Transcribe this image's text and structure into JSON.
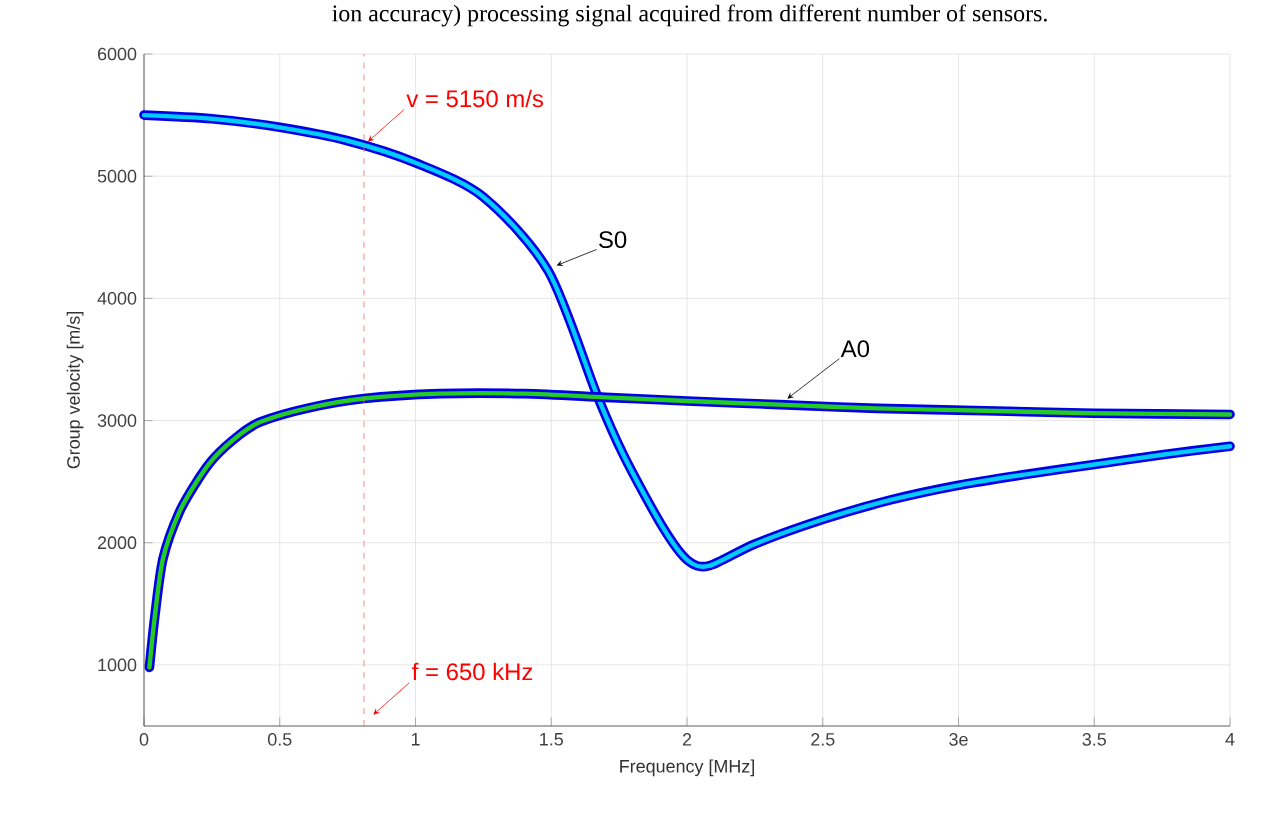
{
  "chart_data": {
    "type": "line",
    "xlabel": "Frequency [MHz]",
    "ylabel": "Group velocity [m/s]",
    "annotations": [
      "ion accuracy) processing signal acquired from different number of sensors.",
      {
        "text": "v = 5150 m/s",
        "x": 0.81,
        "y": 5250
      },
      {
        "text": "f = 650 kHz",
        "x": 0.83,
        "y": 560
      }
    ],
    "series": [
      {
        "name": "S0",
        "color": "#00ccff",
        "x": [
          0,
          0.25,
          0.5,
          0.75,
          1.0,
          1.25,
          1.49,
          1.67,
          1.77,
          1.91,
          2.0,
          2.08,
          2.25,
          2.5,
          2.75,
          3.0,
          3.25,
          3.5,
          3.75,
          4.0
        ],
        "values": [
          5500,
          5470,
          5400,
          5290,
          5110,
          4830,
          4220,
          3200,
          2700,
          2130,
          1860,
          1810,
          1990,
          2190,
          2350,
          2470,
          2560,
          2640,
          2720,
          2790
        ]
      },
      {
        "name": "A0",
        "color": "#22cc22",
        "x": [
          0.02,
          0.04,
          0.07,
          0.13,
          0.2,
          0.26,
          0.35,
          0.43,
          0.6,
          0.81,
          1.09,
          1.4,
          1.7,
          2.0,
          2.34,
          2.7,
          3.1,
          3.5,
          4.0
        ],
        "values": [
          980,
          1400,
          1870,
          2250,
          2520,
          2700,
          2880,
          2990,
          3100,
          3180,
          3220,
          3220,
          3190,
          3160,
          3130,
          3100,
          3080,
          3060,
          3050
        ]
      }
    ],
    "ref_lines": [
      {
        "axis": "x",
        "value": 0.81,
        "color": "#ff6666",
        "line_style": "dashed"
      }
    ],
    "xlim": [
      0,
      4
    ],
    "ylim": [
      500,
      6000
    ],
    "xticks": [
      0,
      0.5,
      1,
      1.5,
      2,
      2.5,
      {
        "value": 3,
        "label": "3e"
      },
      3.5,
      4
    ],
    "yticks": [
      1000,
      2000,
      3000,
      4000,
      5000,
      6000
    ],
    "grid": true,
    "marker": "none",
    "line_style": "solid"
  }
}
